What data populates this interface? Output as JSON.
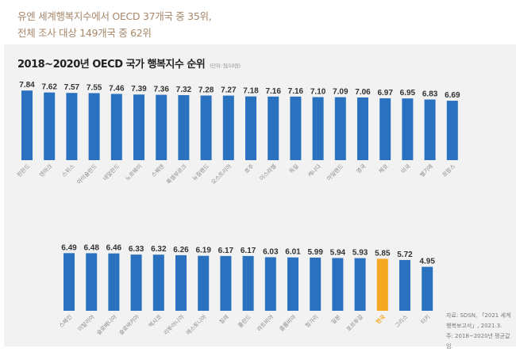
{
  "headline": {
    "line1": "유엔 세계행복지수에서 OECD 37개국 중 35위,",
    "line2": "전체 조사 대상 149개국 중 62위"
  },
  "colors": {
    "bar": "#2a72bf",
    "highlight": "#f5a623",
    "headline": "#a8876a",
    "panel": "#f2f2f2"
  },
  "chart_data": {
    "type": "bar",
    "title": "2018~2020년 OECD 국가 행복지수 순위",
    "unit_label": "(단위: 점/10점)",
    "xlabel": "",
    "ylabel": "",
    "ylim": [
      0,
      10
    ],
    "grid": false,
    "highlight_category": "한국",
    "rows": [
      {
        "categories": [
          "핀란드",
          "덴마크",
          "스위스",
          "아이슬란드",
          "네덜란드",
          "노르웨이",
          "스웨덴",
          "룩셈부르크",
          "뉴질랜드",
          "오스트리아",
          "호주",
          "이스라엘",
          "독일",
          "캐나다",
          "아일랜드",
          "영국",
          "체코",
          "미국",
          "벨기에",
          "프랑스"
        ],
        "values": [
          7.84,
          7.62,
          7.57,
          7.55,
          7.46,
          7.39,
          7.36,
          7.32,
          7.28,
          7.27,
          7.18,
          7.16,
          7.16,
          7.1,
          7.09,
          7.06,
          6.97,
          6.95,
          6.83,
          6.69
        ],
        "labels": [
          "7.84",
          "7.62",
          "7.57",
          "7.55",
          "7.46",
          "7.39",
          "7.36",
          "7.32",
          "7.28",
          "7.27",
          "7.18",
          "7.16",
          "7.16",
          "7.10",
          "7.09",
          "7.06",
          "6.97",
          "6.95",
          "6.83",
          "6.69"
        ]
      },
      {
        "categories": [
          "스페인",
          "이탈리아",
          "슬로베니아",
          "슬로바키아",
          "멕시코",
          "리투아니아",
          "에스토니아",
          "칠레",
          "폴란드",
          "라트비아",
          "콜롬비아",
          "헝가리",
          "일본",
          "포르투갈",
          "한국",
          "그리스",
          "터키"
        ],
        "values": [
          6.49,
          6.48,
          6.46,
          6.33,
          6.32,
          6.26,
          6.19,
          6.17,
          6.17,
          6.03,
          6.01,
          5.99,
          5.94,
          5.93,
          5.85,
          5.72,
          4.95
        ],
        "labels": [
          "6.49",
          "6.48",
          "6.46",
          "6.33",
          "6.32",
          "6.26",
          "6.19",
          "6.17",
          "6.17",
          "6.03",
          "6.01",
          "5.99",
          "5.94",
          "5.93",
          "5.85",
          "5.72",
          "4.95"
        ]
      }
    ]
  },
  "source": {
    "line1": "자료: SDSN, 「2021 세계행복보고서」, 2021.3.",
    "line2": "주: 2018~2020년 평균값임."
  }
}
